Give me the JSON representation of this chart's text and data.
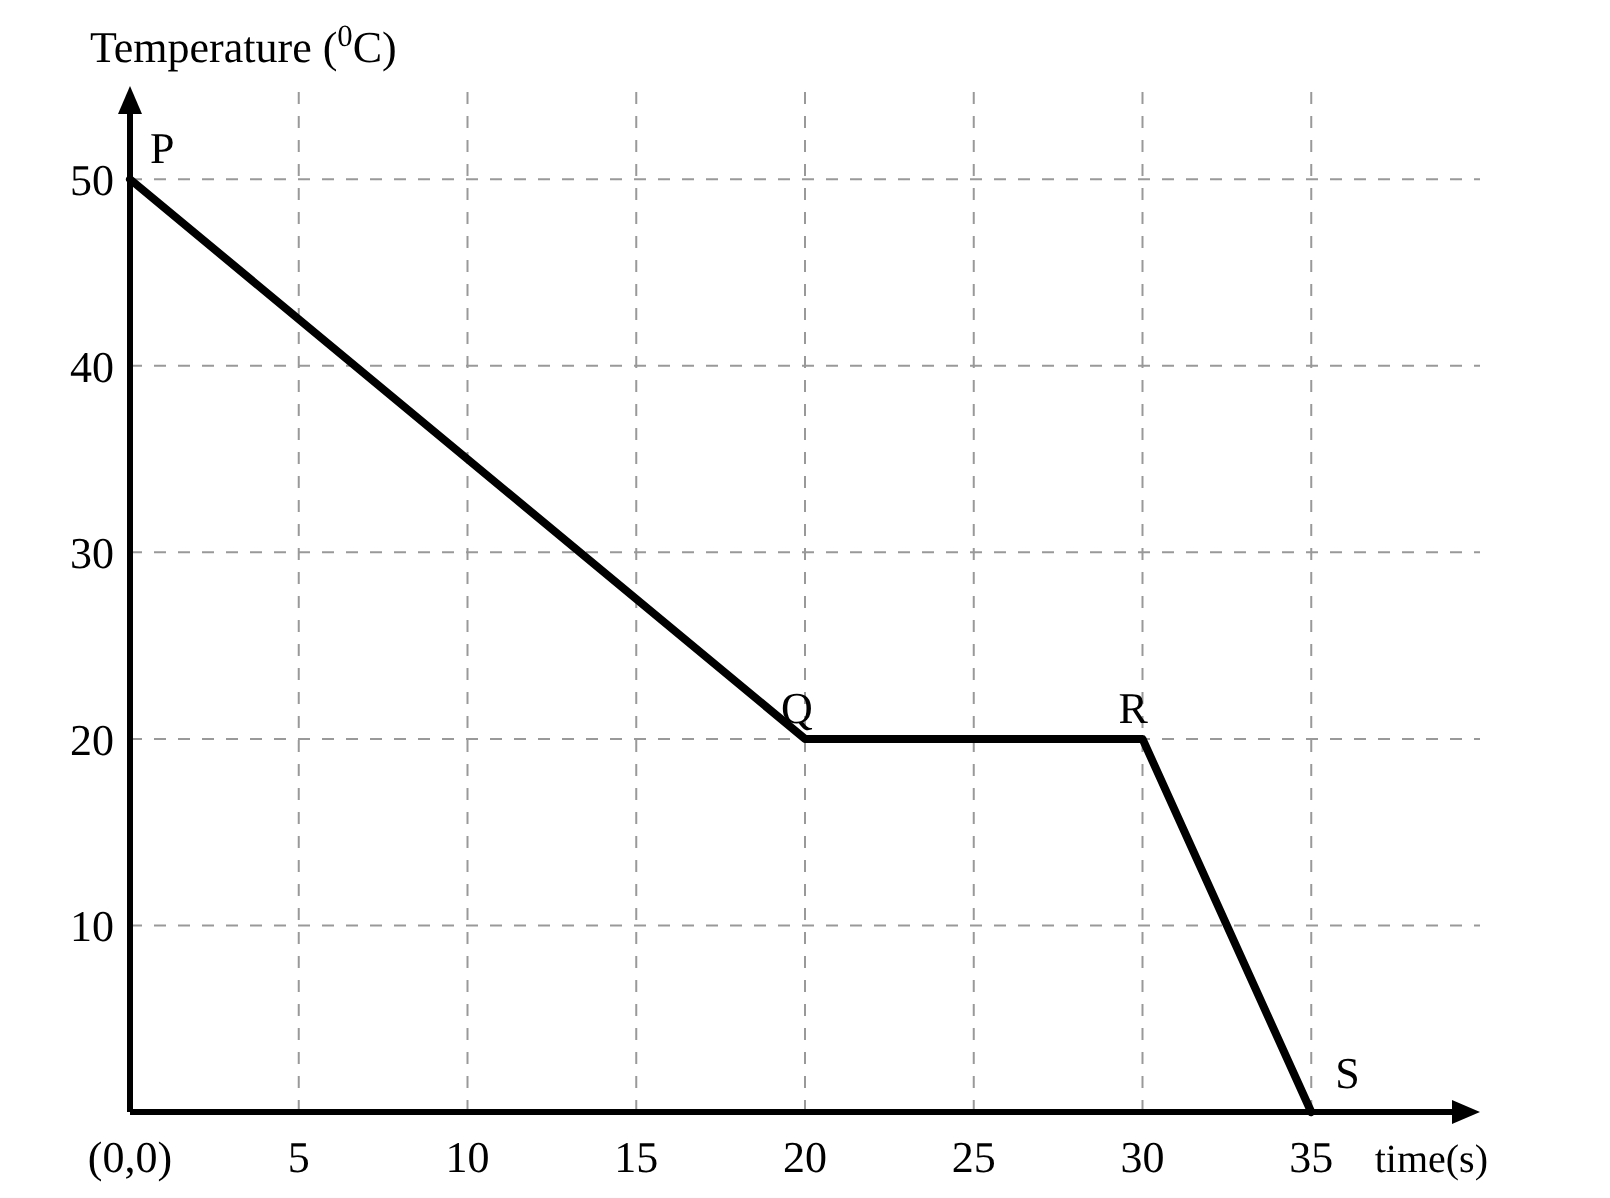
{
  "chart_data": {
    "type": "line",
    "xlabel": "time(s)",
    "ylabel": "Temperature ($^{0}$C)",
    "x": [
      0,
      20,
      30,
      35
    ],
    "series": [
      {
        "color": "#000000",
        "values": [
          50,
          20,
          20,
          0
        ]
      }
    ],
    "xlim": [
      0,
      40
    ],
    "ylim": [
      0,
      55
    ],
    "xticks": [
      {
        "value": 0,
        "label": "(0,0)"
      },
      5,
      10,
      15,
      20,
      25,
      30,
      35
    ],
    "yticks": [
      10,
      20,
      30,
      40,
      50
    ],
    "grid": true,
    "marker": "none",
    "line_style": "solid",
    "annotations": [
      {
        "text": "P",
        "x": 0,
        "y": 50
      },
      {
        "text": "Q",
        "x": 20,
        "y": 20
      },
      {
        "text": "R",
        "x": 30,
        "y": 20
      },
      {
        "text": "S",
        "x": 35,
        "y": 0
      }
    ]
  }
}
